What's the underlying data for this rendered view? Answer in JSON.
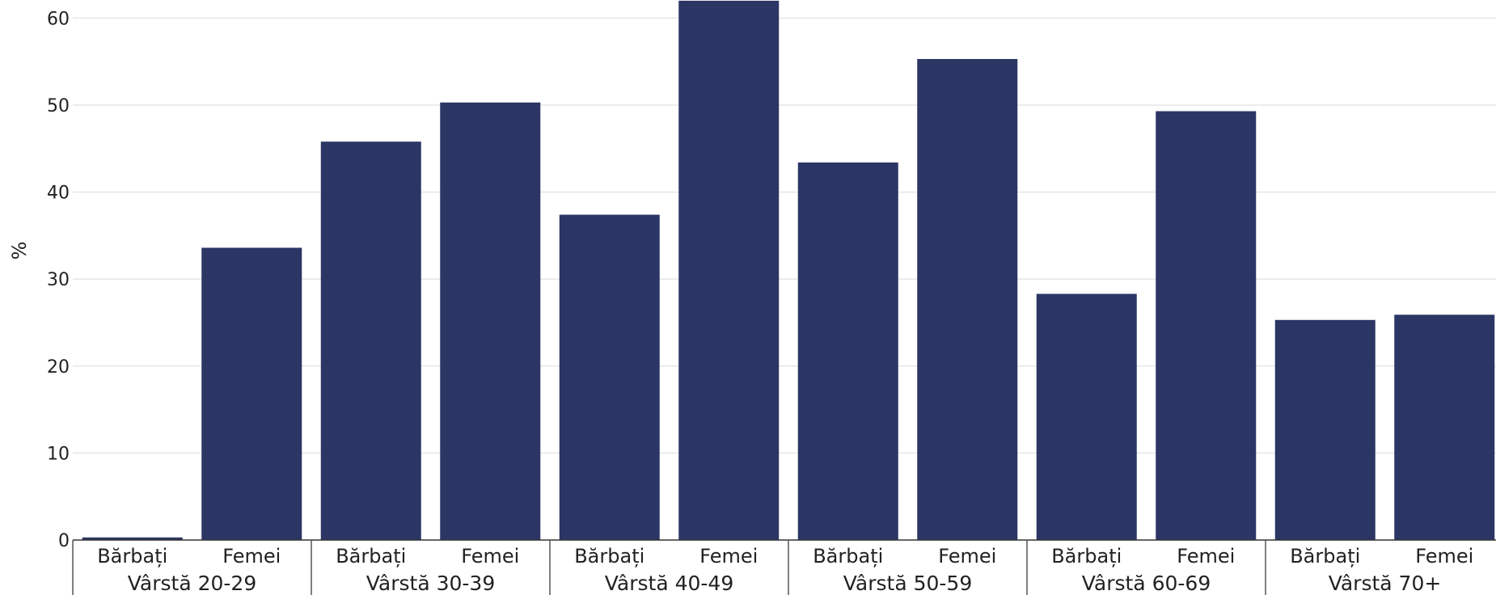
{
  "chart_data": {
    "type": "bar",
    "ylabel": "%",
    "ylim": [
      0,
      62
    ],
    "yticks": [
      0,
      10,
      20,
      30,
      40,
      50,
      60
    ],
    "grid": true,
    "bar_color": "#2b3665",
    "groups": [
      {
        "label": "Vârstă 20-29",
        "categories": [
          "Bărbați",
          "Femei"
        ],
        "values": [
          0.3,
          33.6
        ]
      },
      {
        "label": "Vârstă 30-39",
        "categories": [
          "Bărbați",
          "Femei"
        ],
        "values": [
          45.8,
          50.3
        ]
      },
      {
        "label": "Vârstă 40-49",
        "categories": [
          "Bărbați",
          "Femei"
        ],
        "values": [
          37.4,
          62.0
        ]
      },
      {
        "label": "Vârstă 50-59",
        "categories": [
          "Bărbați",
          "Femei"
        ],
        "values": [
          43.4,
          55.3
        ]
      },
      {
        "label": "Vârstă 60-69",
        "categories": [
          "Bărbați",
          "Femei"
        ],
        "values": [
          28.3,
          49.3
        ]
      },
      {
        "label": "Vârstă 70+",
        "categories": [
          "Bărbați",
          "Femei"
        ],
        "values": [
          25.3,
          25.9
        ]
      }
    ]
  }
}
